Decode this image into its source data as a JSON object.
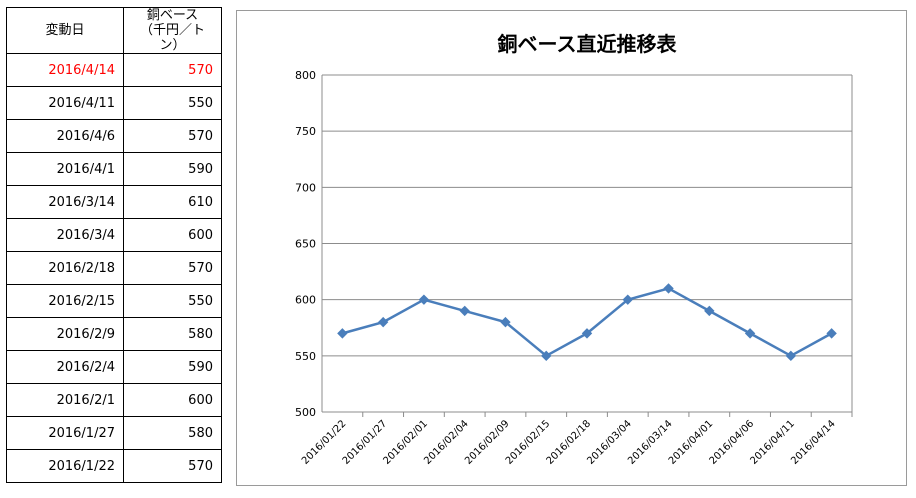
{
  "table": {
    "header": {
      "date": "変動日",
      "value_line1": "銅ベース",
      "value_line2": "（千円／トン）"
    },
    "rows": [
      {
        "date": "2016/4/14",
        "value": "570",
        "highlight": true
      },
      {
        "date": "2016/4/11",
        "value": "550"
      },
      {
        "date": "2016/4/6",
        "value": "570"
      },
      {
        "date": "2016/4/1",
        "value": "590"
      },
      {
        "date": "2016/3/14",
        "value": "610"
      },
      {
        "date": "2016/3/4",
        "value": "600"
      },
      {
        "date": "2016/2/18",
        "value": "570"
      },
      {
        "date": "2016/2/15",
        "value": "550"
      },
      {
        "date": "2016/2/9",
        "value": "580"
      },
      {
        "date": "2016/2/4",
        "value": "590"
      },
      {
        "date": "2016/2/1",
        "value": "600"
      },
      {
        "date": "2016/1/27",
        "value": "580"
      },
      {
        "date": "2016/1/22",
        "value": "570"
      }
    ]
  },
  "chart_data": {
    "type": "line",
    "title": "銅ベース直近推移表",
    "x": [
      "2016/01/22",
      "2016/01/27",
      "2016/02/01",
      "2016/02/04",
      "2016/02/09",
      "2016/02/15",
      "2016/02/18",
      "2016/03/04",
      "2016/03/14",
      "2016/04/01",
      "2016/04/06",
      "2016/04/11",
      "2016/04/14"
    ],
    "series": [
      {
        "values": [
          570,
          580,
          600,
          590,
          580,
          550,
          570,
          600,
          610,
          590,
          570,
          550,
          570
        ]
      }
    ],
    "ylim": [
      500,
      800
    ],
    "yticks": [
      500,
      550,
      600,
      650,
      700,
      750,
      800
    ],
    "grid": true,
    "legend": "none",
    "marker": "diamond",
    "line_color": "#4a7ebb",
    "highlight_color": "#ff0000"
  }
}
